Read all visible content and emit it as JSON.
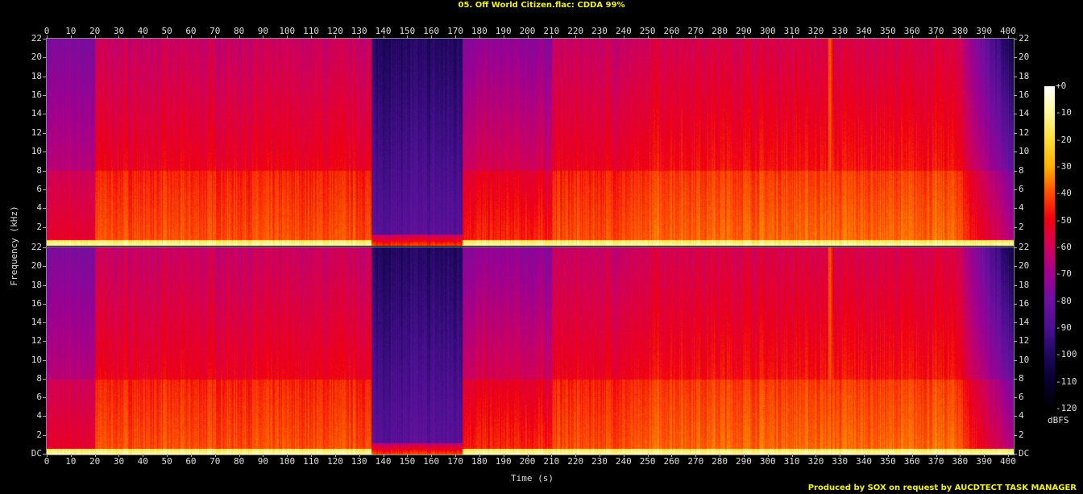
{
  "chart_data": {
    "type": "heatmap",
    "title": "05. Off World Citizen.flac: CDDA 99%",
    "xlabel": "Time (s)",
    "ylabel": "Frequency (kHz)",
    "xlim": [
      0,
      400
    ],
    "ylim": [
      0,
      22
    ],
    "channels": 2,
    "x_ticks": [
      "0",
      "10",
      "20",
      "30",
      "40",
      "50",
      "60",
      "70",
      "80",
      "90",
      "100",
      "110",
      "120",
      "130",
      "140",
      "150",
      "160",
      "170",
      "180",
      "190",
      "200",
      "210",
      "220",
      "230",
      "240",
      "250",
      "260",
      "270",
      "280",
      "290",
      "300",
      "310",
      "320",
      "330",
      "340",
      "350",
      "360",
      "370",
      "380",
      "390",
      "400"
    ],
    "y_ticks_top": [
      "22",
      "20",
      "18",
      "16",
      "14",
      "12",
      "10",
      "8",
      "6",
      "4",
      "2"
    ],
    "y_ticks_bottom": [
      "22",
      "20",
      "18",
      "16",
      "14",
      "12",
      "10",
      "8",
      "6",
      "4",
      "2",
      "DC"
    ],
    "colorbar": {
      "label": "dBFS",
      "range": [
        -120,
        0
      ],
      "ticks": [
        "+0",
        "-10",
        "-20",
        "-30",
        "-40",
        "-50",
        "-60",
        "-70",
        "-80",
        "-90",
        "-100",
        "-110",
        "-120"
      ],
      "colormap": [
        "#000000",
        "#080030",
        "#200860",
        "#4a1090",
        "#7010a0",
        "#a00090",
        "#d0005a",
        "#f00010",
        "#ff5000",
        "#ffb000",
        "#ffe040",
        "#fff8a0",
        "#ffffff"
      ]
    },
    "segments_approx_dbfs": [
      {
        "t": [
          0,
          20
        ],
        "high_freq_db": -78,
        "low_freq_db": -58
      },
      {
        "t": [
          20,
          135
        ],
        "high_freq_db": -62,
        "low_freq_db": -45
      },
      {
        "t": [
          135,
          173
        ],
        "high_freq_db": -100,
        "low_freq_db": -85
      },
      {
        "t": [
          173,
          210
        ],
        "high_freq_db": -74,
        "low_freq_db": -50
      },
      {
        "t": [
          210,
          250
        ],
        "high_freq_db": -62,
        "low_freq_db": -45
      },
      {
        "t": [
          250,
          380
        ],
        "high_freq_db": -58,
        "low_freq_db": -42
      },
      {
        "t": [
          380,
          401
        ],
        "high_freq_db": -105,
        "low_freq_db": -60
      }
    ],
    "transient_at_s": 326
  },
  "credit": "Produced by SOX on request by AUCDTECT TASK MANAGER"
}
